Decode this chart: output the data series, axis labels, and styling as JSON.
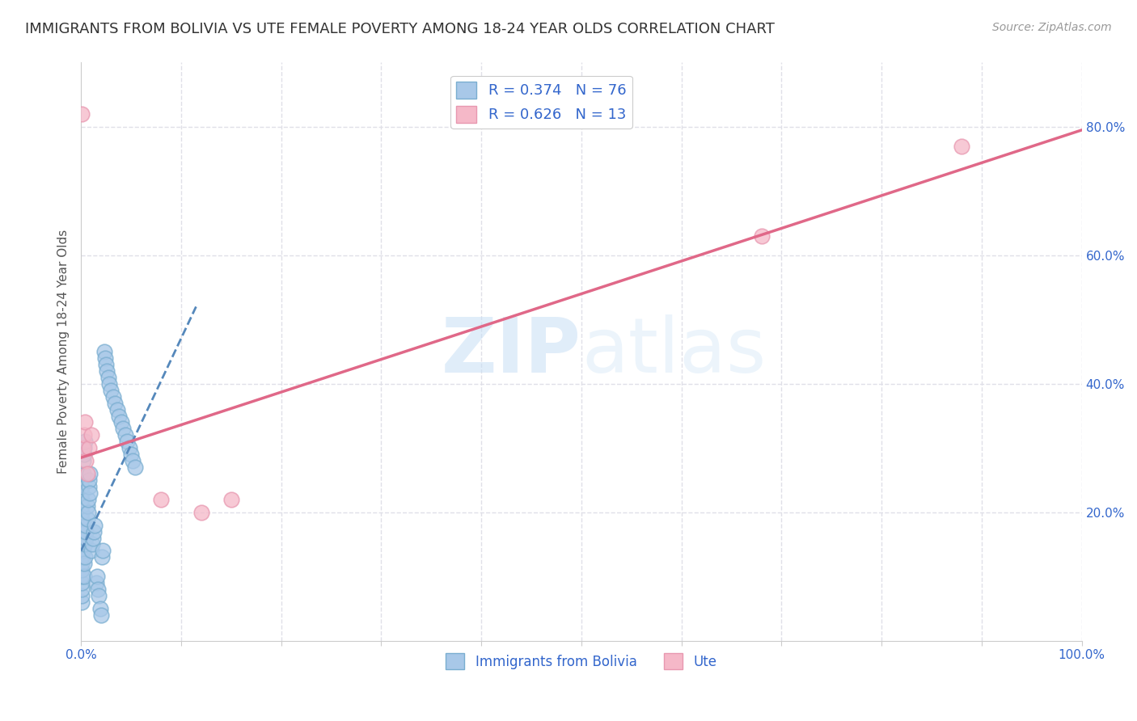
{
  "title": "IMMIGRANTS FROM BOLIVIA VS UTE FEMALE POVERTY AMONG 18-24 YEAR OLDS CORRELATION CHART",
  "source": "Source: ZipAtlas.com",
  "ylabel": "Female Poverty Among 18-24 Year Olds",
  "xlim": [
    0.0,
    1.0
  ],
  "ylim": [
    0.0,
    0.9
  ],
  "xticks": [
    0.0,
    0.1,
    0.2,
    0.3,
    0.4,
    0.5,
    0.6,
    0.7,
    0.8,
    0.9,
    1.0
  ],
  "xticklabels": [
    "0.0%",
    "",
    "",
    "",
    "",
    "",
    "",
    "",
    "",
    "",
    "100.0%"
  ],
  "ytick_positions": [
    0.2,
    0.4,
    0.6,
    0.8
  ],
  "yticklabels": [
    "20.0%",
    "40.0%",
    "60.0%",
    "80.0%"
  ],
  "grid_color": "#e0e0e8",
  "background_color": "#ffffff",
  "watermark_zip": "ZIP",
  "watermark_atlas": "atlas",
  "legend_labels": [
    "R = 0.374   N = 76",
    "R = 0.626   N = 13"
  ],
  "legend_series": [
    "Immigrants from Bolivia",
    "Ute"
  ],
  "blue_color": "#a8c8e8",
  "blue_edge_color": "#7aaed0",
  "blue_line_color": "#5588bb",
  "pink_color": "#f5b8c8",
  "pink_edge_color": "#e898b0",
  "pink_line_color": "#e06888",
  "title_fontsize": 13,
  "axis_label_fontsize": 11,
  "tick_label_color": "#3366cc",
  "bolivia_scatter_x": [
    0.001,
    0.001,
    0.001,
    0.001,
    0.001,
    0.001,
    0.001,
    0.001,
    0.001,
    0.001,
    0.001,
    0.001,
    0.001,
    0.001,
    0.001,
    0.001,
    0.001,
    0.001,
    0.001,
    0.001,
    0.002,
    0.002,
    0.002,
    0.002,
    0.002,
    0.002,
    0.003,
    0.003,
    0.003,
    0.003,
    0.004,
    0.004,
    0.004,
    0.005,
    0.005,
    0.005,
    0.006,
    0.006,
    0.007,
    0.007,
    0.008,
    0.008,
    0.009,
    0.009,
    0.01,
    0.011,
    0.012,
    0.013,
    0.014,
    0.015,
    0.016,
    0.017,
    0.018,
    0.019,
    0.02,
    0.021,
    0.022,
    0.023,
    0.024,
    0.025,
    0.026,
    0.027,
    0.028,
    0.03,
    0.032,
    0.034,
    0.036,
    0.038,
    0.04,
    0.042,
    0.044,
    0.046,
    0.048,
    0.05,
    0.052,
    0.054
  ],
  "bolivia_scatter_y": [
    0.06,
    0.07,
    0.08,
    0.09,
    0.1,
    0.11,
    0.12,
    0.13,
    0.14,
    0.15,
    0.15,
    0.16,
    0.17,
    0.18,
    0.19,
    0.2,
    0.21,
    0.22,
    0.23,
    0.24,
    0.14,
    0.15,
    0.16,
    0.17,
    0.26,
    0.28,
    0.1,
    0.12,
    0.29,
    0.3,
    0.13,
    0.15,
    0.31,
    0.16,
    0.17,
    0.18,
    0.19,
    0.21,
    0.2,
    0.22,
    0.24,
    0.25,
    0.23,
    0.26,
    0.14,
    0.15,
    0.16,
    0.17,
    0.18,
    0.09,
    0.1,
    0.08,
    0.07,
    0.05,
    0.04,
    0.13,
    0.14,
    0.45,
    0.44,
    0.43,
    0.42,
    0.41,
    0.4,
    0.39,
    0.38,
    0.37,
    0.36,
    0.35,
    0.34,
    0.33,
    0.32,
    0.31,
    0.3,
    0.29,
    0.28,
    0.27
  ],
  "ute_scatter_x": [
    0.001,
    0.002,
    0.003,
    0.004,
    0.005,
    0.006,
    0.008,
    0.01,
    0.08,
    0.12,
    0.15,
    0.68,
    0.88
  ],
  "ute_scatter_y": [
    0.82,
    0.3,
    0.32,
    0.34,
    0.28,
    0.26,
    0.3,
    0.32,
    0.22,
    0.2,
    0.22,
    0.63,
    0.77
  ],
  "blue_line_x": [
    0.0,
    0.115
  ],
  "blue_line_y": [
    0.14,
    0.52
  ],
  "pink_line_x": [
    0.0,
    1.0
  ],
  "pink_line_y": [
    0.285,
    0.795
  ]
}
